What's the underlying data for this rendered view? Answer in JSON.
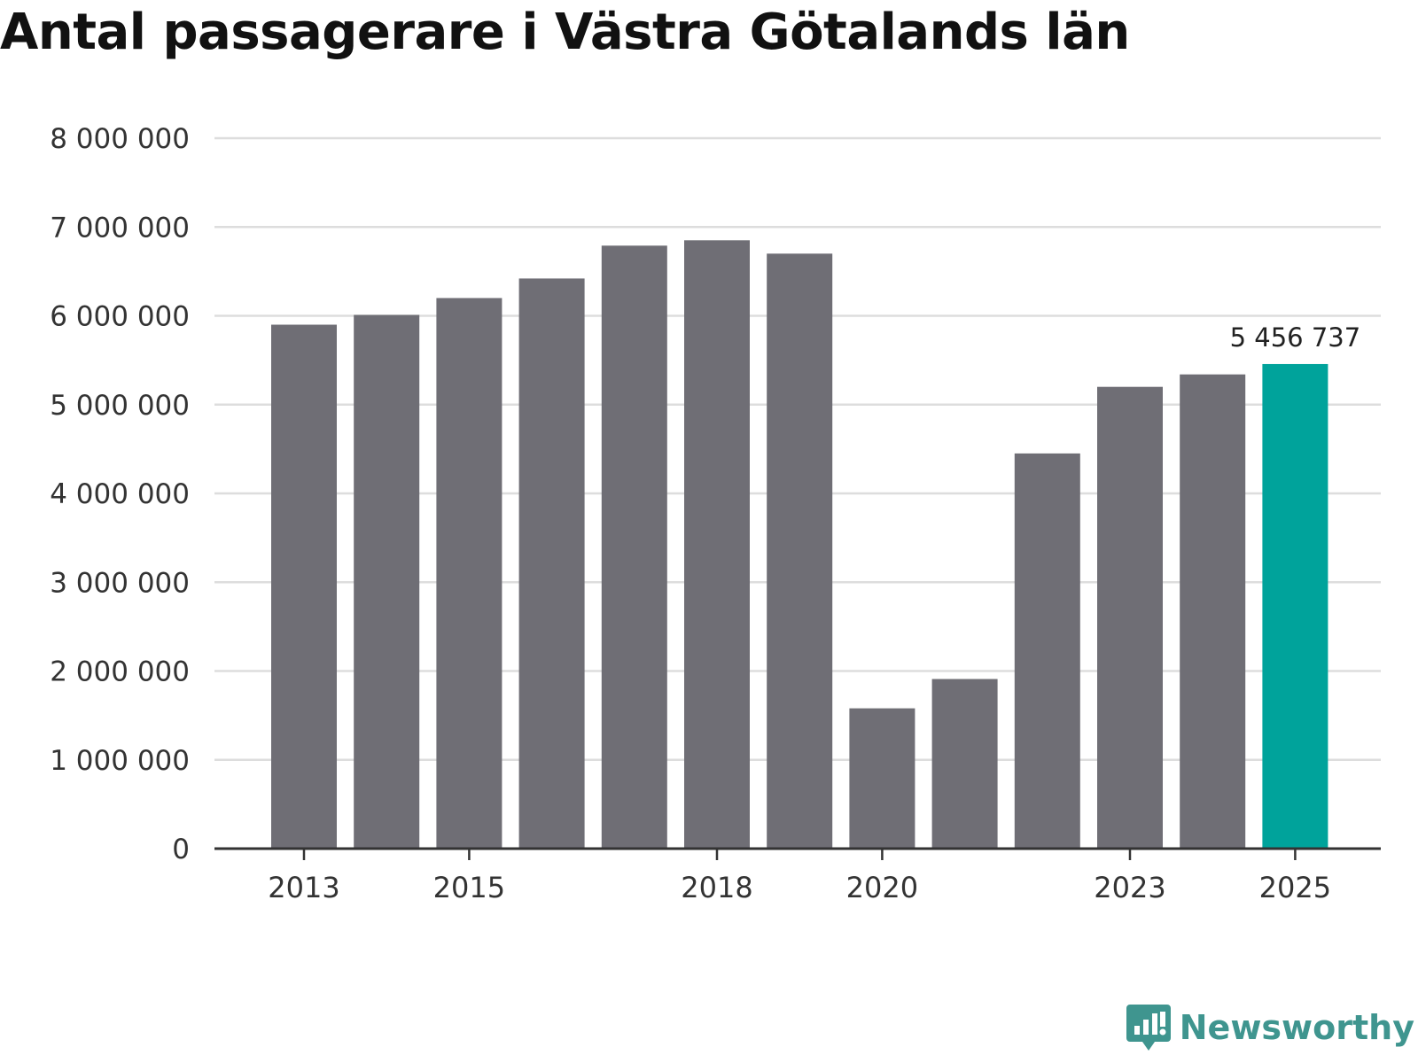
{
  "title": "Antal passagerare i Västra Götalands län",
  "chart_data": {
    "type": "bar",
    "title": "Antal passagerare i Västra Götalands län",
    "xlabel": "",
    "ylabel": "",
    "categories": [
      "2013",
      "2014",
      "2015",
      "2016",
      "2017",
      "2018",
      "2019",
      "2020",
      "2021",
      "2022",
      "2023",
      "2024",
      "2025"
    ],
    "values": [
      5900000,
      6010000,
      6200000,
      6420000,
      6790000,
      6850000,
      6700000,
      1580000,
      1910000,
      4450000,
      5200000,
      5340000,
      5456737
    ],
    "highlight_index": 12,
    "data_labels": [
      {
        "index": 12,
        "text": "5 456 737"
      }
    ],
    "ylim": [
      0,
      8000000
    ],
    "y_ticks": [
      0,
      1000000,
      2000000,
      3000000,
      4000000,
      5000000,
      6000000,
      7000000,
      8000000
    ],
    "y_tick_labels": [
      "0",
      "1 000 000",
      "2 000 000",
      "3 000 000",
      "4 000 000",
      "5 000 000",
      "6 000 000",
      "7 000 000",
      "8 000 000"
    ],
    "x_tick_labels": [
      "2013",
      "2015",
      "2018",
      "2020",
      "2023",
      "2025"
    ],
    "grid": true,
    "bar_color": "#6f6e75",
    "highlight_color": "#00a39b",
    "grid_color": "#dddddd",
    "axis_color": "#333333"
  },
  "branding": {
    "name": "Newsworthy",
    "icon": "newsworthy-logo-icon",
    "color": "#3f958f"
  }
}
